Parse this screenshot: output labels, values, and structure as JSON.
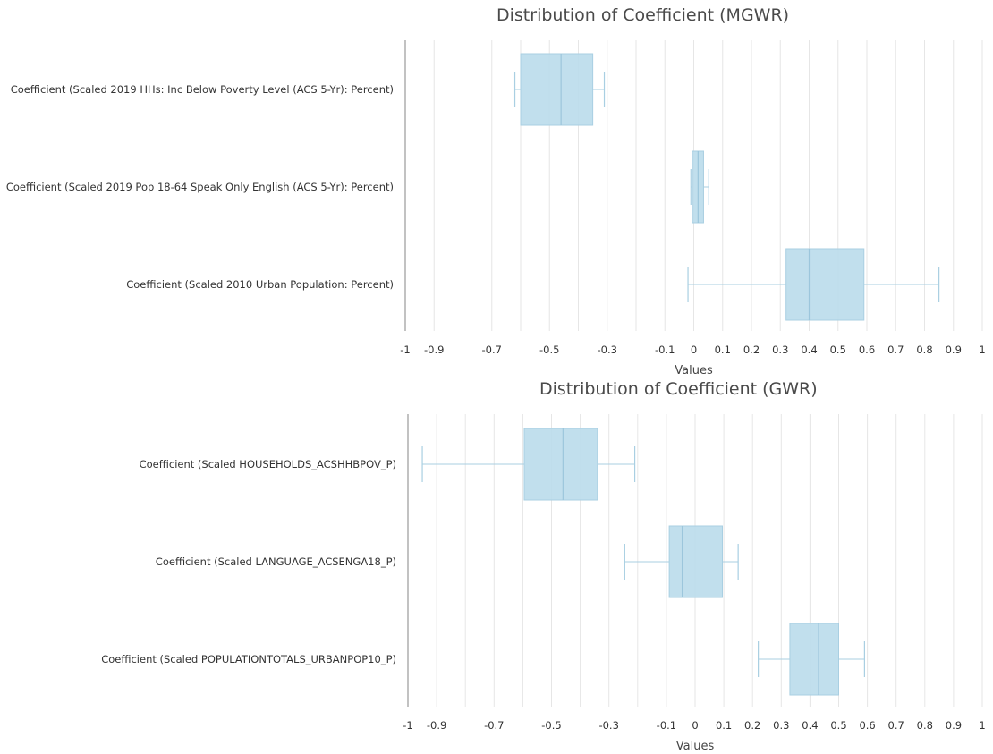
{
  "colors": {
    "box_fill": "#bcdcec",
    "box_stroke": "#a9cfe2",
    "median": "#9cc6dc",
    "whisker": "#a9cfe2",
    "grid": "#e6e6e6",
    "axis": "#999999"
  },
  "chart_data": [
    {
      "type": "boxplot",
      "orientation": "horizontal",
      "title": "Distribution of Coefficient (MGWR)",
      "xlabel": "Values",
      "xlim": [
        -1,
        1
      ],
      "grid": true,
      "grid_step": 0.1,
      "tick_labels": [
        "-1",
        "-0.9",
        "-0.7",
        "-0.5",
        "-0.3",
        "-0.1",
        "0",
        "0.1",
        "0.2",
        "0.3",
        "0.4",
        "0.5",
        "0.6",
        "0.7",
        "0.8",
        "0.9",
        "1"
      ],
      "tick_values": [
        -1,
        -0.9,
        -0.7,
        -0.5,
        -0.3,
        -0.1,
        0,
        0.1,
        0.2,
        0.3,
        0.4,
        0.5,
        0.6,
        0.7,
        0.8,
        0.9,
        1
      ],
      "categories": [
        "Coefficient (Scaled 2019 HHs: Inc Below Poverty Level (ACS 5-Yr): Percent)",
        "Coefficient (Scaled 2019 Pop 18-64 Speak Only English (ACS 5-Yr): Percent)",
        "Coefficient (Scaled 2010 Urban Population: Percent)"
      ],
      "boxes": [
        {
          "min": -0.62,
          "q1": -0.6,
          "median": -0.46,
          "q3": -0.35,
          "max": -0.31
        },
        {
          "min": -0.01,
          "q1": -0.005,
          "median": 0.015,
          "q3": 0.034,
          "max": 0.052
        },
        {
          "min": -0.02,
          "q1": 0.32,
          "median": 0.4,
          "q3": 0.59,
          "max": 0.85
        }
      ]
    },
    {
      "type": "boxplot",
      "orientation": "horizontal",
      "title": "Distribution of Coefficient (GWR)",
      "xlabel": "Values",
      "xlim": [
        -1,
        1
      ],
      "grid": true,
      "grid_step": 0.1,
      "tick_labels": [
        "-1",
        "-0.9",
        "-0.7",
        "-0.5",
        "-0.3",
        "-0.1",
        "0",
        "0.1",
        "0.2",
        "0.3",
        "0.4",
        "0.5",
        "0.6",
        "0.7",
        "0.8",
        "0.9",
        "1"
      ],
      "tick_values": [
        -1,
        -0.9,
        -0.7,
        -0.5,
        -0.3,
        -0.1,
        0,
        0.1,
        0.2,
        0.3,
        0.4,
        0.5,
        0.6,
        0.7,
        0.8,
        0.9,
        1
      ],
      "categories": [
        "Coefficient (Scaled HOUSEHOLDS_ACSHHBPOV_P)",
        "Coefficient (Scaled LANGUAGE_ACSENGA18_P)",
        "Coefficient (Scaled POPULATIONTOTALS_URBANPOP10_P)"
      ],
      "boxes": [
        {
          "min": -0.95,
          "q1": -0.595,
          "median": -0.46,
          "q3": -0.34,
          "max": -0.21
        },
        {
          "min": -0.245,
          "q1": -0.09,
          "median": -0.045,
          "q3": 0.095,
          "max": 0.15
        },
        {
          "min": 0.22,
          "q1": 0.33,
          "median": 0.43,
          "q3": 0.5,
          "max": 0.59
        }
      ]
    }
  ]
}
